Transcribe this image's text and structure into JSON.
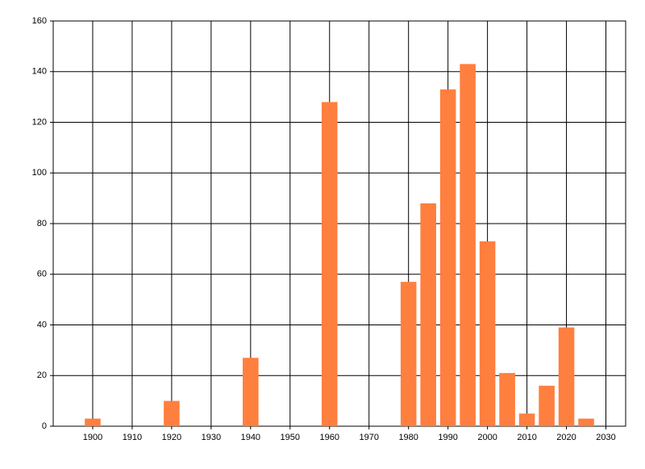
{
  "chart_data": {
    "type": "bar",
    "x": [
      1900,
      1920,
      1940,
      1960,
      1980,
      1985,
      1990,
      1995,
      2000,
      2005,
      2010,
      2015,
      2020,
      2025
    ],
    "values": [
      3,
      10,
      27,
      128,
      57,
      88,
      133,
      143,
      73,
      21,
      5,
      16,
      39,
      3
    ],
    "color": "#ff7f3f",
    "xlim": [
      1890,
      2035
    ],
    "xticks": [
      1900,
      1910,
      1920,
      1930,
      1940,
      1950,
      1960,
      1970,
      1980,
      1990,
      2000,
      2010,
      2020,
      2030
    ],
    "ylim": [
      0,
      160
    ],
    "yticks": [
      0,
      20,
      40,
      60,
      80,
      100,
      120,
      140,
      160
    ],
    "grid": true
  }
}
